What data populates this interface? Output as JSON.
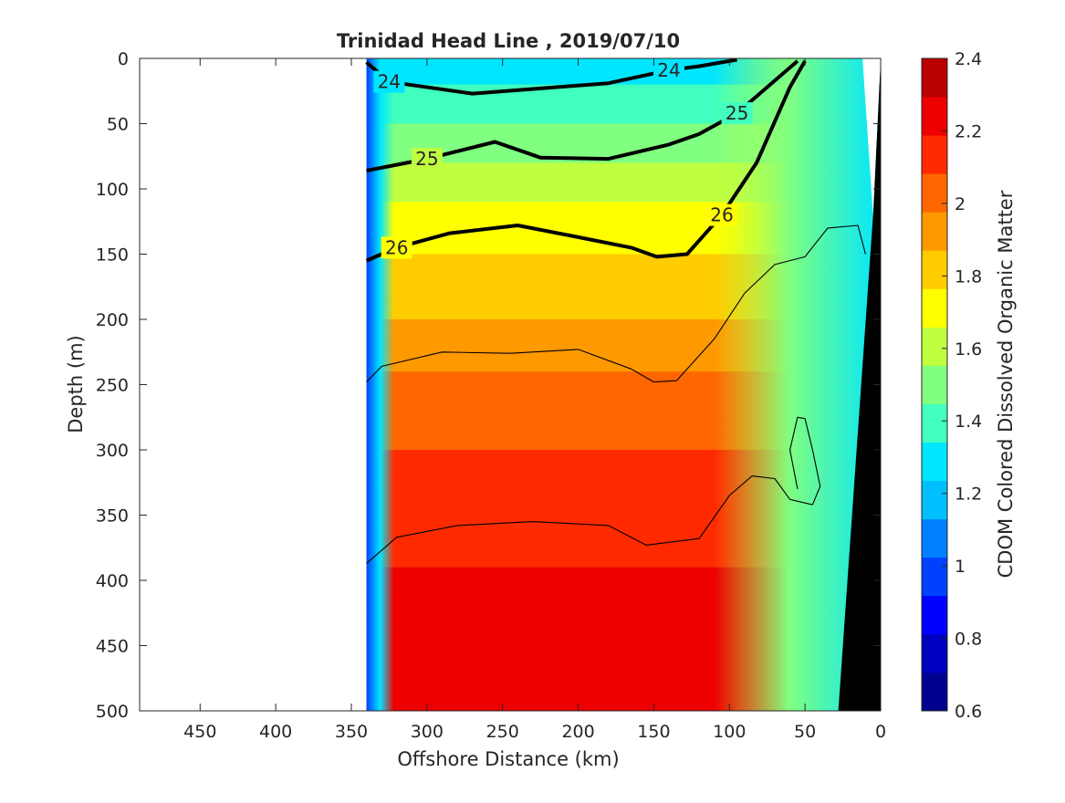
{
  "chart_data": {
    "type": "heatmap",
    "title": "Trinidad Head Line , 2019/07/10",
    "xlabel": "Offshore Distance (km)",
    "ylabel": "Depth (m)",
    "colorbar_label": "CDOM Colored Dissolved Organic Matter",
    "xlim": [
      490,
      0
    ],
    "ylim": [
      500,
      0
    ],
    "x_ticks": [
      450,
      400,
      350,
      300,
      250,
      200,
      150,
      100,
      50,
      0
    ],
    "y_ticks": [
      0,
      50,
      100,
      150,
      200,
      250,
      300,
      350,
      400,
      450,
      500
    ],
    "colorbar_range": [
      0.6,
      2.4
    ],
    "colorbar_ticks": [
      0.6,
      0.8,
      1,
      1.2,
      1.4,
      1.6,
      1.8,
      2,
      2.2,
      2.4
    ],
    "colormap": [
      "#00008f",
      "#0000c0",
      "#0000ff",
      "#0040ff",
      "#0080ff",
      "#00bfff",
      "#00e6ff",
      "#40ffbf",
      "#80ff80",
      "#bfff40",
      "#ffff00",
      "#ffcc00",
      "#ff9900",
      "#ff6600",
      "#ff2a00",
      "#ee0000",
      "#bb0000"
    ],
    "data_x_range": [
      340,
      0
    ],
    "bathymetry_color": "#000000",
    "cdom_profile": [
      {
        "depth": 0,
        "value": 1.3
      },
      {
        "depth": 25,
        "value": 1.35
      },
      {
        "depth": 50,
        "value": 1.45
      },
      {
        "depth": 75,
        "value": 1.55
      },
      {
        "depth": 100,
        "value": 1.62
      },
      {
        "depth": 125,
        "value": 1.7
      },
      {
        "depth": 150,
        "value": 1.76
      },
      {
        "depth": 200,
        "value": 1.88
      },
      {
        "depth": 250,
        "value": 2.0
      },
      {
        "depth": 300,
        "value": 2.08
      },
      {
        "depth": 350,
        "value": 2.15
      },
      {
        "depth": 400,
        "value": 2.2
      },
      {
        "depth": 500,
        "value": 2.22
      }
    ],
    "isopycnals": [
      {
        "label": "24",
        "major": true,
        "points": [
          [
            340,
            3
          ],
          [
            325,
            18
          ],
          [
            270,
            27
          ],
          [
            180,
            19
          ],
          [
            140,
            9
          ],
          [
            120,
            6
          ],
          [
            95,
            1
          ]
        ]
      },
      {
        "label": "25",
        "major": true,
        "points": [
          [
            340,
            86
          ],
          [
            300,
            77
          ],
          [
            255,
            64
          ],
          [
            225,
            76
          ],
          [
            180,
            77
          ],
          [
            140,
            66
          ],
          [
            120,
            58
          ],
          [
            95,
            42
          ],
          [
            75,
            22
          ],
          [
            55,
            2
          ]
        ]
      },
      {
        "label": "26",
        "major": true,
        "points": [
          [
            340,
            155
          ],
          [
            320,
            145
          ],
          [
            285,
            134
          ],
          [
            240,
            128
          ],
          [
            200,
            137
          ],
          [
            165,
            145
          ],
          [
            148,
            152
          ],
          [
            128,
            150
          ],
          [
            105,
            120
          ],
          [
            82,
            80
          ],
          [
            60,
            22
          ],
          [
            50,
            2
          ]
        ]
      },
      {
        "label": "",
        "major": false,
        "points": [
          [
            340,
            248
          ],
          [
            330,
            236
          ],
          [
            290,
            225
          ],
          [
            245,
            226
          ],
          [
            200,
            223
          ],
          [
            165,
            238
          ],
          [
            150,
            248
          ],
          [
            135,
            247
          ],
          [
            110,
            215
          ],
          [
            90,
            180
          ],
          [
            70,
            158
          ],
          [
            50,
            152
          ],
          [
            35,
            130
          ],
          [
            15,
            128
          ],
          [
            10,
            150
          ]
        ]
      },
      {
        "label": "",
        "major": false,
        "points": [
          [
            340,
            387
          ],
          [
            320,
            367
          ],
          [
            280,
            358
          ],
          [
            230,
            355
          ],
          [
            180,
            358
          ],
          [
            155,
            373
          ],
          [
            120,
            368
          ],
          [
            100,
            335
          ],
          [
            85,
            320
          ],
          [
            70,
            322
          ],
          [
            60,
            338
          ],
          [
            45,
            342
          ],
          [
            40,
            328
          ],
          [
            45,
            300
          ],
          [
            50,
            276
          ],
          [
            55,
            275
          ],
          [
            60,
            300
          ],
          [
            55,
            330
          ]
        ]
      }
    ]
  }
}
